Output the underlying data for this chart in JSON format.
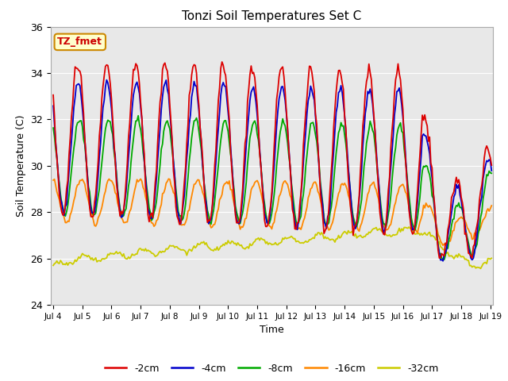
{
  "title": "Tonzi Soil Temperatures Set C",
  "xlabel": "Time",
  "ylabel": "Soil Temperature (C)",
  "ylim": [
    24,
    36
  ],
  "xlim_hours": 362,
  "legend_labels": [
    "-2cm",
    "-4cm",
    "-8cm",
    "-16cm",
    "-32cm"
  ],
  "legend_colors": [
    "#dd0000",
    "#0000cc",
    "#00aa00",
    "#ff8800",
    "#cccc00"
  ],
  "annotation_text": "TZ_fmet",
  "annotation_bg": "#ffffcc",
  "annotation_border": "#cc8800",
  "tick_labels": [
    "Jul 4",
    "Jul 5",
    "Jul 6",
    "Jul 7",
    "Jul 8",
    "Jul 9",
    "Jul 10",
    "Jul 11",
    "Jul 12",
    "Jul 13",
    "Jul 14",
    "Jul 15",
    "Jul 16",
    "Jul 17",
    "Jul 18",
    "Jul 19"
  ],
  "tick_positions": [
    0,
    24,
    48,
    72,
    96,
    120,
    144,
    168,
    192,
    216,
    240,
    264,
    288,
    312,
    336,
    360
  ],
  "plot_bg": "#e8e8e8",
  "fig_bg": "#ffffff",
  "grid_color": "#ffffff"
}
